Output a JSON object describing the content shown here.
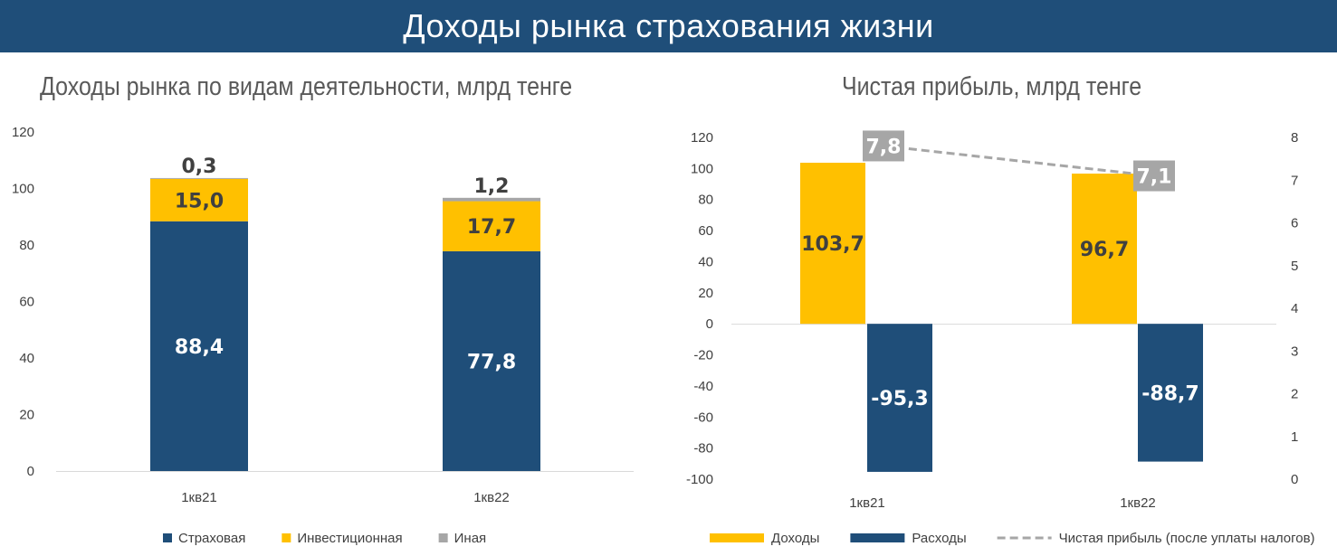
{
  "header": {
    "title": "Доходы рынка страхования жизни"
  },
  "colors": {
    "header_bg": "#1f4e79",
    "navy": "#1f4e79",
    "gold": "#ffc000",
    "gray": "#a6a6a6"
  },
  "chart_data": [
    {
      "type": "bar",
      "stacked": true,
      "title": "Доходы рынка по видам деятельности, млрд тенге",
      "categories": [
        "1кв21",
        "1кв22"
      ],
      "series": [
        {
          "name": "Страховая",
          "values": [
            88.4,
            77.8
          ],
          "labels": [
            "88,4",
            "77,8"
          ],
          "color": "#1f4e79"
        },
        {
          "name": "Инвестиционная",
          "values": [
            15.0,
            17.7
          ],
          "labels": [
            "15,0",
            "17,7"
          ],
          "color": "#ffc000"
        },
        {
          "name": "Иная",
          "values": [
            0.3,
            1.2
          ],
          "labels": [
            "0,3",
            "1,2"
          ],
          "color": "#a6a6a6"
        }
      ],
      "ylim": [
        0,
        120
      ],
      "yticks": [
        0,
        20,
        40,
        60,
        80,
        100,
        120
      ],
      "legend": "bottom"
    },
    {
      "type": "bar",
      "title": "Чистая прибыль, млрд тенге",
      "categories": [
        "1кв21",
        "1кв22"
      ],
      "series": [
        {
          "name": "Доходы",
          "values": [
            103.7,
            96.7
          ],
          "labels": [
            "103,7",
            "96,7"
          ],
          "color": "#ffc000"
        },
        {
          "name": "Расходы",
          "values": [
            -95.3,
            -88.7
          ],
          "labels": [
            "-95,3",
            "-88,7"
          ],
          "color": "#1f4e79"
        },
        {
          "name": "Чистая прибыль (после уплаты налогов)",
          "type": "line",
          "axis": "secondary",
          "style": "dashed",
          "values": [
            7.8,
            7.1
          ],
          "labels": [
            "7,8",
            "7,1"
          ],
          "color": "#a6a6a6"
        }
      ],
      "ylim": [
        -100,
        120
      ],
      "yticks": [
        -100,
        -80,
        -60,
        -40,
        -20,
        0,
        20,
        40,
        60,
        80,
        100,
        120
      ],
      "y2lim": [
        0,
        8
      ],
      "y2ticks": [
        0,
        1,
        2,
        3,
        4,
        5,
        6,
        7,
        8
      ],
      "legend": "bottom"
    }
  ]
}
